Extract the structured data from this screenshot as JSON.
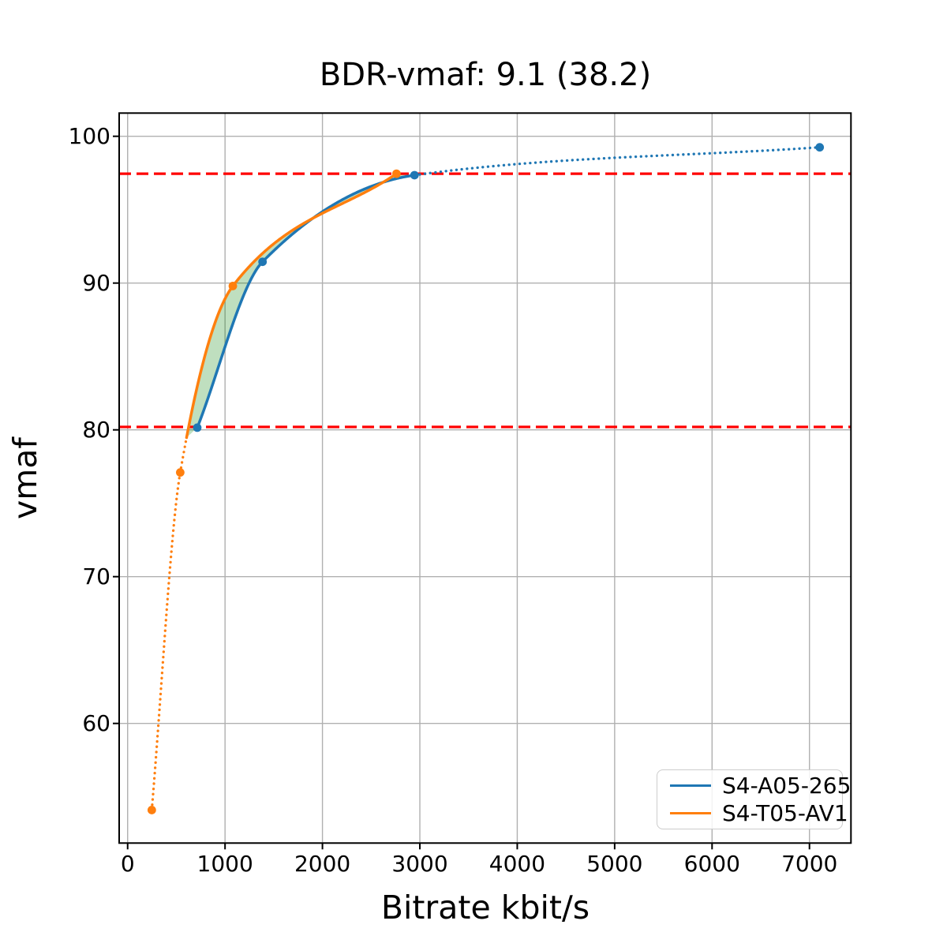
{
  "chart_data": {
    "type": "line",
    "title": "BDR-vmaf: 9.1 (38.2)",
    "xlabel": "Bitrate kbit/s",
    "ylabel": "vmaf",
    "xlim": [
      -87,
      7426
    ],
    "ylim": [
      51.85,
      101.58
    ],
    "xticks": [
      0,
      1000,
      2000,
      3000,
      4000,
      5000,
      6000,
      7000
    ],
    "yticks": [
      60,
      70,
      80,
      90,
      100
    ],
    "grid": true,
    "grid_color": "#b0b0b0",
    "legend_position": "lower right",
    "series": [
      {
        "name": "S4-A05-265",
        "color": "#1f77b4",
        "points": [
          [
            715,
            80.15
          ],
          [
            1385,
            91.45
          ],
          [
            2945,
            97.35
          ],
          [
            7105,
            99.25
          ]
        ],
        "solid_range": [
          715,
          2945
        ]
      },
      {
        "name": "S4-T05-AV1",
        "color": "#ff7f0e",
        "points": [
          [
            248,
            54.1
          ],
          [
            540,
            77.1
          ],
          [
            1080,
            89.8
          ],
          [
            2760,
            97.45
          ]
        ],
        "solid_range": [
          605,
          2760
        ]
      }
    ],
    "hlines": [
      {
        "y": 97.45,
        "color": "#ff0000",
        "style": "dashed"
      },
      {
        "y": 80.2,
        "color": "#ff0000",
        "style": "dashed"
      }
    ],
    "fill_between": {
      "between": [
        "S4-T05-AV1",
        "S4-A05-265"
      ],
      "color": "#008000",
      "alpha": 0.25,
      "y_range": [
        80.2,
        97.45
      ]
    }
  }
}
